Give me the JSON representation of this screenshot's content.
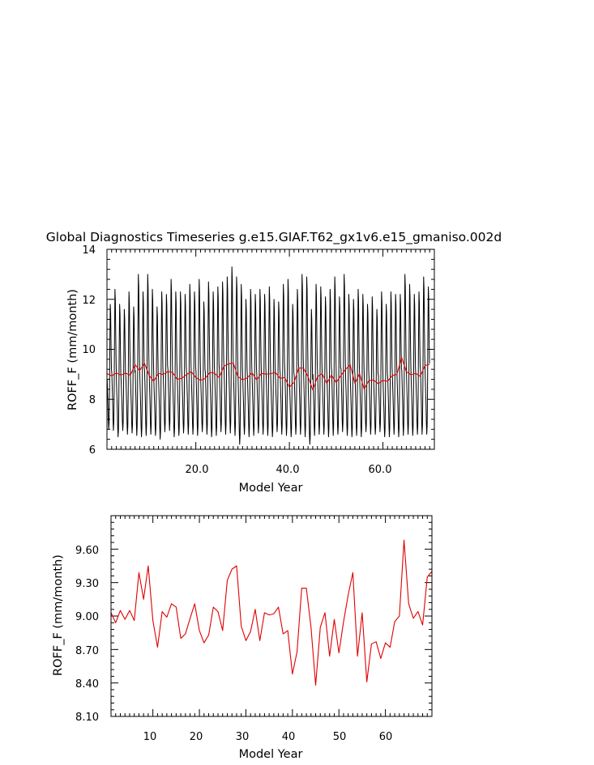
{
  "figure_title": "Global Diagnostics Timeseries g.e15.GIAF.T62_gx1v6.e15_gmaniso.002d",
  "colors": {
    "monthly_line": "#000000",
    "annual_line": "#e00000",
    "axes": "#000000",
    "background": "#ffffff"
  },
  "chart_data": [
    {
      "type": "line",
      "xlabel": "Model Year",
      "ylabel": "ROFF_F (mm/month)",
      "xlim": [
        1,
        71
      ],
      "ylim": [
        6,
        14
      ],
      "x_ticks": [
        20,
        40,
        60
      ],
      "x_tick_labels": [
        "20.0",
        "40.0",
        "60.0"
      ],
      "y_ticks": [
        6,
        8,
        10,
        12,
        14
      ],
      "y_tick_labels": [
        "6",
        "8",
        "10",
        "12",
        "14"
      ],
      "grid": false,
      "monthly_cycle": {
        "climatology": [
          8.9,
          8.4,
          7.9,
          7.2,
          6.8,
          7.1,
          8.3,
          10.5,
          12.0,
          11.6,
          10.3,
          9.3
        ]
      },
      "series": [
        {
          "color": "#000000",
          "monthly_minima": [
            6.8,
            6.75,
            6.5,
            6.75,
            6.6,
            6.65,
            6.55,
            6.5,
            6.55,
            6.6,
            6.55,
            6.4,
            6.7,
            6.75,
            6.5,
            6.55,
            6.65,
            6.6,
            6.6,
            6.55,
            6.7,
            6.6,
            6.5,
            6.55,
            6.7,
            6.6,
            6.65,
            6.55,
            6.2,
            6.6,
            6.5,
            6.55,
            6.65,
            6.6,
            6.55,
            6.5,
            6.7,
            6.6,
            6.55,
            6.5,
            6.6,
            6.6,
            6.5,
            6.2,
            6.55,
            6.6,
            6.6,
            6.5,
            6.55,
            6.6,
            6.7,
            6.55,
            6.5,
            6.55,
            6.5,
            6.7,
            6.6,
            6.6,
            6.7,
            6.5,
            6.5,
            6.6,
            6.5,
            6.55,
            6.6,
            6.55,
            6.6,
            6.6,
            6.6
          ],
          "monthly_maxima": [
            11.8,
            12.4,
            11.8,
            11.6,
            12.3,
            11.7,
            13.0,
            12.3,
            13.0,
            12.4,
            11.7,
            12.3,
            12.2,
            12.8,
            12.3,
            12.3,
            12.2,
            12.6,
            12.3,
            12.8,
            11.9,
            12.7,
            12.3,
            12.5,
            12.7,
            12.9,
            13.3,
            12.9,
            12.6,
            12.0,
            12.4,
            12.2,
            12.4,
            12.2,
            12.5,
            12.0,
            11.9,
            12.6,
            12.8,
            11.8,
            12.4,
            13.0,
            12.9,
            11.6,
            12.6,
            12.5,
            12.1,
            12.4,
            12.9,
            12.1,
            13.0,
            12.2,
            12.0,
            12.4,
            12.2,
            11.8,
            12.1,
            11.6,
            12.3,
            11.8,
            12.3,
            12.2,
            12.2,
            13.0,
            12.6,
            12.2,
            12.3,
            12.9,
            12.5
          ]
        },
        {
          "color": "#e00000",
          "x": [
            1,
            2,
            3,
            4,
            5,
            6,
            7,
            8,
            9,
            10,
            11,
            12,
            13,
            14,
            15,
            16,
            17,
            18,
            19,
            20,
            21,
            22,
            23,
            24,
            25,
            26,
            27,
            28,
            29,
            30,
            31,
            32,
            33,
            34,
            35,
            36,
            37,
            38,
            39,
            40,
            41,
            42,
            43,
            44,
            45,
            46,
            47,
            48,
            49,
            50,
            51,
            52,
            53,
            54,
            55,
            56,
            57,
            58,
            59,
            60,
            61,
            62,
            63,
            64,
            65,
            66,
            67,
            68,
            69,
            70
          ],
          "values": [
            9.03,
            8.94,
            9.05,
            8.97,
            9.05,
            8.96,
            9.39,
            9.15,
            9.45,
            8.96,
            8.72,
            9.04,
            8.99,
            9.11,
            9.08,
            8.8,
            8.84,
            8.98,
            9.11,
            8.87,
            8.76,
            8.83,
            9.08,
            9.04,
            8.87,
            9.32,
            9.42,
            9.45,
            8.91,
            8.78,
            8.86,
            9.06,
            8.78,
            9.03,
            9.01,
            9.02,
            9.08,
            8.84,
            8.87,
            8.48,
            8.68,
            9.25,
            9.25,
            8.9,
            8.38,
            8.9,
            9.03,
            8.64,
            8.97,
            8.67,
            8.95,
            9.19,
            9.39,
            8.64,
            9.03,
            8.41,
            8.75,
            8.77,
            8.62,
            8.76,
            8.72,
            8.95,
            9.0,
            9.68,
            9.11,
            8.98,
            9.04,
            8.92,
            9.35,
            9.4
          ]
        }
      ]
    },
    {
      "type": "line",
      "xlabel": "Model Year",
      "ylabel": "ROFF_F (mm/month)",
      "xlim": [
        1,
        70
      ],
      "ylim": [
        8.1,
        9.9
      ],
      "x_ticks": [
        10,
        20,
        30,
        40,
        50,
        60
      ],
      "x_tick_labels": [
        "10",
        "20",
        "30",
        "40",
        "50",
        "60"
      ],
      "y_ticks": [
        8.1,
        8.4,
        8.7,
        9.0,
        9.3,
        9.6
      ],
      "y_tick_labels": [
        "8.10",
        "8.40",
        "8.70",
        "9.00",
        "9.30",
        "9.60"
      ],
      "grid": false,
      "series": [
        {
          "color": "#e00000",
          "x": [
            1,
            2,
            3,
            4,
            5,
            6,
            7,
            8,
            9,
            10,
            11,
            12,
            13,
            14,
            15,
            16,
            17,
            18,
            19,
            20,
            21,
            22,
            23,
            24,
            25,
            26,
            27,
            28,
            29,
            30,
            31,
            32,
            33,
            34,
            35,
            36,
            37,
            38,
            39,
            40,
            41,
            42,
            43,
            44,
            45,
            46,
            47,
            48,
            49,
            50,
            51,
            52,
            53,
            54,
            55,
            56,
            57,
            58,
            59,
            60,
            61,
            62,
            63,
            64,
            65,
            66,
            67,
            68,
            69,
            70
          ],
          "values": [
            9.03,
            8.94,
            9.05,
            8.97,
            9.05,
            8.96,
            9.39,
            9.15,
            9.45,
            8.96,
            8.72,
            9.04,
            8.99,
            9.11,
            9.08,
            8.8,
            8.84,
            8.98,
            9.11,
            8.87,
            8.76,
            8.83,
            9.08,
            9.04,
            8.87,
            9.32,
            9.42,
            9.45,
            8.91,
            8.78,
            8.86,
            9.06,
            8.78,
            9.03,
            9.01,
            9.02,
            9.08,
            8.84,
            8.87,
            8.48,
            8.68,
            9.25,
            9.25,
            8.9,
            8.38,
            8.9,
            9.03,
            8.64,
            8.97,
            8.67,
            8.95,
            9.19,
            9.39,
            8.64,
            9.03,
            8.41,
            8.75,
            8.77,
            8.62,
            8.76,
            8.72,
            8.95,
            9.0,
            9.68,
            9.11,
            8.98,
            9.04,
            8.92,
            9.35,
            9.4
          ]
        }
      ]
    }
  ]
}
